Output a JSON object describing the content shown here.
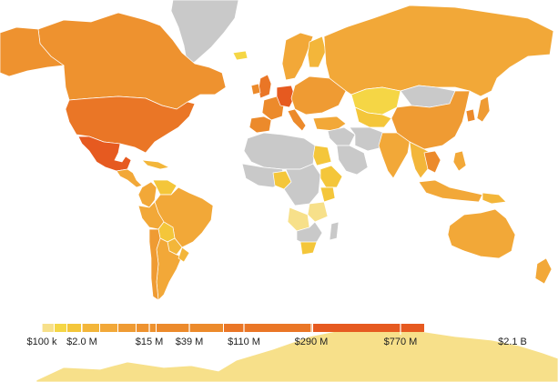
{
  "map": {
    "projection": "mercator-world",
    "colors": {
      "no_data": "#c9c9c9",
      "ocean": "#ffffff",
      "border": "#ffffff"
    }
  },
  "legend": {
    "ticks": [
      "$100 k",
      "$2.0 M",
      "$15 M",
      "$39 M",
      "$110 M",
      "$290 M",
      "$770 M",
      "$2.1 B"
    ],
    "bins": [
      {
        "color": "#f7e08a"
      },
      {
        "color": "#f5d645"
      },
      {
        "color": "#f4c63a"
      },
      {
        "color": "#f3b63a"
      },
      {
        "color": "#f2a838"
      },
      {
        "color": "#ef9b33"
      },
      {
        "color": "#ee922f"
      },
      {
        "color": "#ec8a2b"
      },
      {
        "color": "#ea7626"
      },
      {
        "color": "#e65a20"
      }
    ]
  },
  "regions": [
    {
      "name": "Greenland",
      "color": "#c9c9c9"
    },
    {
      "name": "Canada",
      "color": "#ee922f"
    },
    {
      "name": "Alaska",
      "color": "#ee922f"
    },
    {
      "name": "United States",
      "color": "#ea7626"
    },
    {
      "name": "Mexico",
      "color": "#e65a20"
    },
    {
      "name": "Central America",
      "color": "#f2a838"
    },
    {
      "name": "Caribbean",
      "color": "#f3b63a"
    },
    {
      "name": "Colombia",
      "color": "#f2a838"
    },
    {
      "name": "Venezuela",
      "color": "#f4c63a"
    },
    {
      "name": "Brazil",
      "color": "#f2a838"
    },
    {
      "name": "Peru",
      "color": "#f2a838"
    },
    {
      "name": "Bolivia",
      "color": "#f4c63a"
    },
    {
      "name": "Paraguay",
      "color": "#f3b63a"
    },
    {
      "name": "Argentina",
      "color": "#f2a838"
    },
    {
      "name": "Chile",
      "color": "#ef9b33"
    },
    {
      "name": "Uruguay",
      "color": "#f3b63a"
    },
    {
      "name": "Iceland",
      "color": "#f5d645"
    },
    {
      "name": "United Kingdom",
      "color": "#ea7626"
    },
    {
      "name": "Ireland",
      "color": "#ec8a2b"
    },
    {
      "name": "France",
      "color": "#ec8a2b"
    },
    {
      "name": "Spain",
      "color": "#ec8a2b"
    },
    {
      "name": "Germany",
      "color": "#e65a20"
    },
    {
      "name": "Scandinavia",
      "color": "#f2a838"
    },
    {
      "name": "Finland",
      "color": "#f3b63a"
    },
    {
      "name": "Eastern Europe",
      "color": "#ef9b33"
    },
    {
      "name": "Italy",
      "color": "#ec8a2b"
    },
    {
      "name": "Turkey",
      "color": "#f2a838"
    },
    {
      "name": "Russia",
      "color": "#f2a838"
    },
    {
      "name": "Kazakhstan",
      "color": "#f5d645"
    },
    {
      "name": "Mongolia",
      "color": "#c9c9c9"
    },
    {
      "name": "China",
      "color": "#ef9b33"
    },
    {
      "name": "Central Asia",
      "color": "#f4c63a"
    },
    {
      "name": "Middle East",
      "color": "#c9c9c9"
    },
    {
      "name": "Saudi Arabia",
      "color": "#c9c9c9"
    },
    {
      "name": "Iran",
      "color": "#c9c9c9"
    },
    {
      "name": "India",
      "color": "#f2a838"
    },
    {
      "name": "Southeast Asia",
      "color": "#f3b63a"
    },
    {
      "name": "Thailand",
      "color": "#ec8a2b"
    },
    {
      "name": "Japan",
      "color": "#ef9b33"
    },
    {
      "name": "Korea",
      "color": "#ec8a2b"
    },
    {
      "name": "Philippines",
      "color": "#f2a838"
    },
    {
      "name": "Indonesia",
      "color": "#f2a838"
    },
    {
      "name": "Papua New Guinea",
      "color": "#f3b63a"
    },
    {
      "name": "Australia",
      "color": "#f2a838"
    },
    {
      "name": "New Zealand",
      "color": "#f2a838"
    },
    {
      "name": "North Africa",
      "color": "#c9c9c9"
    },
    {
      "name": "Egypt",
      "color": "#f4c63a"
    },
    {
      "name": "West Africa",
      "color": "#c9c9c9"
    },
    {
      "name": "Nigeria",
      "color": "#f4c63a"
    },
    {
      "name": "Central Africa",
      "color": "#c9c9c9"
    },
    {
      "name": "East Africa",
      "color": "#f4c63a"
    },
    {
      "name": "Kenya",
      "color": "#f4c63a"
    },
    {
      "name": "Tanzania",
      "color": "#f7e08a"
    },
    {
      "name": "Angola",
      "color": "#f7e08a"
    },
    {
      "name": "Southern Africa",
      "color": "#c9c9c9"
    },
    {
      "name": "South Africa",
      "color": "#f4c63a"
    },
    {
      "name": "Madagascar",
      "color": "#c9c9c9"
    },
    {
      "name": "Antarctica",
      "color": "#f7e08a"
    }
  ]
}
